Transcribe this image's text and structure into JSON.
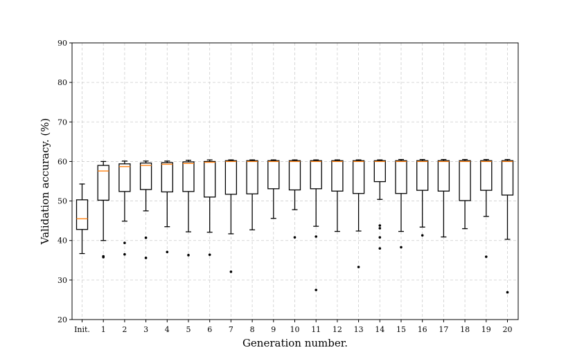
{
  "chart_data": {
    "type": "box",
    "title": "",
    "xlabel": "Generation number.",
    "ylabel": "Validation accuracy. (%)",
    "ylim": [
      20,
      90
    ],
    "yticks": [
      20,
      30,
      40,
      50,
      60,
      70,
      80,
      90
    ],
    "grid": true,
    "categories": [
      "Init.",
      "1",
      "2",
      "3",
      "4",
      "5",
      "6",
      "7",
      "8",
      "9",
      "10",
      "11",
      "12",
      "13",
      "14",
      "15",
      "16",
      "17",
      "18",
      "19",
      "20"
    ],
    "boxes": [
      {
        "label": "Init.",
        "whislo": 36.7,
        "q1": 42.8,
        "med": 45.5,
        "q3": 50.3,
        "whishi": 54.3,
        "fliers": []
      },
      {
        "label": "1",
        "whislo": 40.0,
        "q1": 50.2,
        "med": 57.6,
        "q3": 59.0,
        "whishi": 60.0,
        "fliers": [
          36.0,
          35.8
        ]
      },
      {
        "label": "2",
        "whislo": 44.9,
        "q1": 52.4,
        "med": 58.7,
        "q3": 59.4,
        "whishi": 60.1,
        "fliers": [
          39.4,
          36.5
        ]
      },
      {
        "label": "3",
        "whislo": 47.5,
        "q1": 52.9,
        "med": 59.0,
        "q3": 59.6,
        "whishi": 60.1,
        "fliers": [
          40.7,
          35.6
        ]
      },
      {
        "label": "4",
        "whislo": 43.5,
        "q1": 52.3,
        "med": 59.3,
        "q3": 59.7,
        "whishi": 60.1,
        "fliers": [
          37.1
        ]
      },
      {
        "label": "5",
        "whislo": 42.2,
        "q1": 52.4,
        "med": 59.5,
        "q3": 59.9,
        "whishi": 60.3,
        "fliers": [
          36.3
        ]
      },
      {
        "label": "6",
        "whislo": 42.1,
        "q1": 51.0,
        "med": 59.8,
        "q3": 60.0,
        "whishi": 60.4,
        "fliers": [
          36.4
        ]
      },
      {
        "label": "7",
        "whislo": 41.7,
        "q1": 51.7,
        "med": 60.0,
        "q3": 60.2,
        "whishi": 60.4,
        "fliers": [
          32.1
        ]
      },
      {
        "label": "8",
        "whislo": 42.7,
        "q1": 51.8,
        "med": 60.0,
        "q3": 60.2,
        "whishi": 60.4,
        "fliers": []
      },
      {
        "label": "9",
        "whislo": 45.6,
        "q1": 53.1,
        "med": 60.0,
        "q3": 60.2,
        "whishi": 60.4,
        "fliers": []
      },
      {
        "label": "10",
        "whislo": 47.8,
        "q1": 52.8,
        "med": 60.0,
        "q3": 60.2,
        "whishi": 60.4,
        "fliers": [
          40.8
        ]
      },
      {
        "label": "11",
        "whislo": 43.6,
        "q1": 53.1,
        "med": 60.0,
        "q3": 60.2,
        "whishi": 60.4,
        "fliers": [
          41.0,
          27.5
        ]
      },
      {
        "label": "12",
        "whislo": 42.3,
        "q1": 52.5,
        "med": 60.0,
        "q3": 60.2,
        "whishi": 60.4,
        "fliers": []
      },
      {
        "label": "13",
        "whislo": 42.4,
        "q1": 51.9,
        "med": 60.0,
        "q3": 60.2,
        "whishi": 60.4,
        "fliers": [
          33.3
        ]
      },
      {
        "label": "14",
        "whislo": 50.4,
        "q1": 54.9,
        "med": 60.0,
        "q3": 60.2,
        "whishi": 60.4,
        "fliers": [
          43.8,
          43.1,
          40.8,
          38.0
        ]
      },
      {
        "label": "15",
        "whislo": 42.3,
        "q1": 51.9,
        "med": 60.0,
        "q3": 60.2,
        "whishi": 60.5,
        "fliers": [
          38.3
        ]
      },
      {
        "label": "16",
        "whislo": 43.4,
        "q1": 52.7,
        "med": 60.0,
        "q3": 60.2,
        "whishi": 60.5,
        "fliers": [
          41.3
        ]
      },
      {
        "label": "17",
        "whislo": 40.9,
        "q1": 52.5,
        "med": 60.0,
        "q3": 60.2,
        "whishi": 60.5,
        "fliers": []
      },
      {
        "label": "18",
        "whislo": 43.0,
        "q1": 50.1,
        "med": 60.0,
        "q3": 60.2,
        "whishi": 60.5,
        "fliers": []
      },
      {
        "label": "19",
        "whislo": 46.1,
        "q1": 52.7,
        "med": 60.0,
        "q3": 60.2,
        "whishi": 60.5,
        "fliers": [
          35.9
        ]
      },
      {
        "label": "20",
        "whislo": 40.3,
        "q1": 51.5,
        "med": 60.0,
        "q3": 60.2,
        "whishi": 60.5,
        "fliers": [
          26.9
        ]
      }
    ],
    "colors": {
      "box": "#000000",
      "median": "#ff7f0e",
      "grid": "#cccccc",
      "flier": "#000000"
    }
  }
}
